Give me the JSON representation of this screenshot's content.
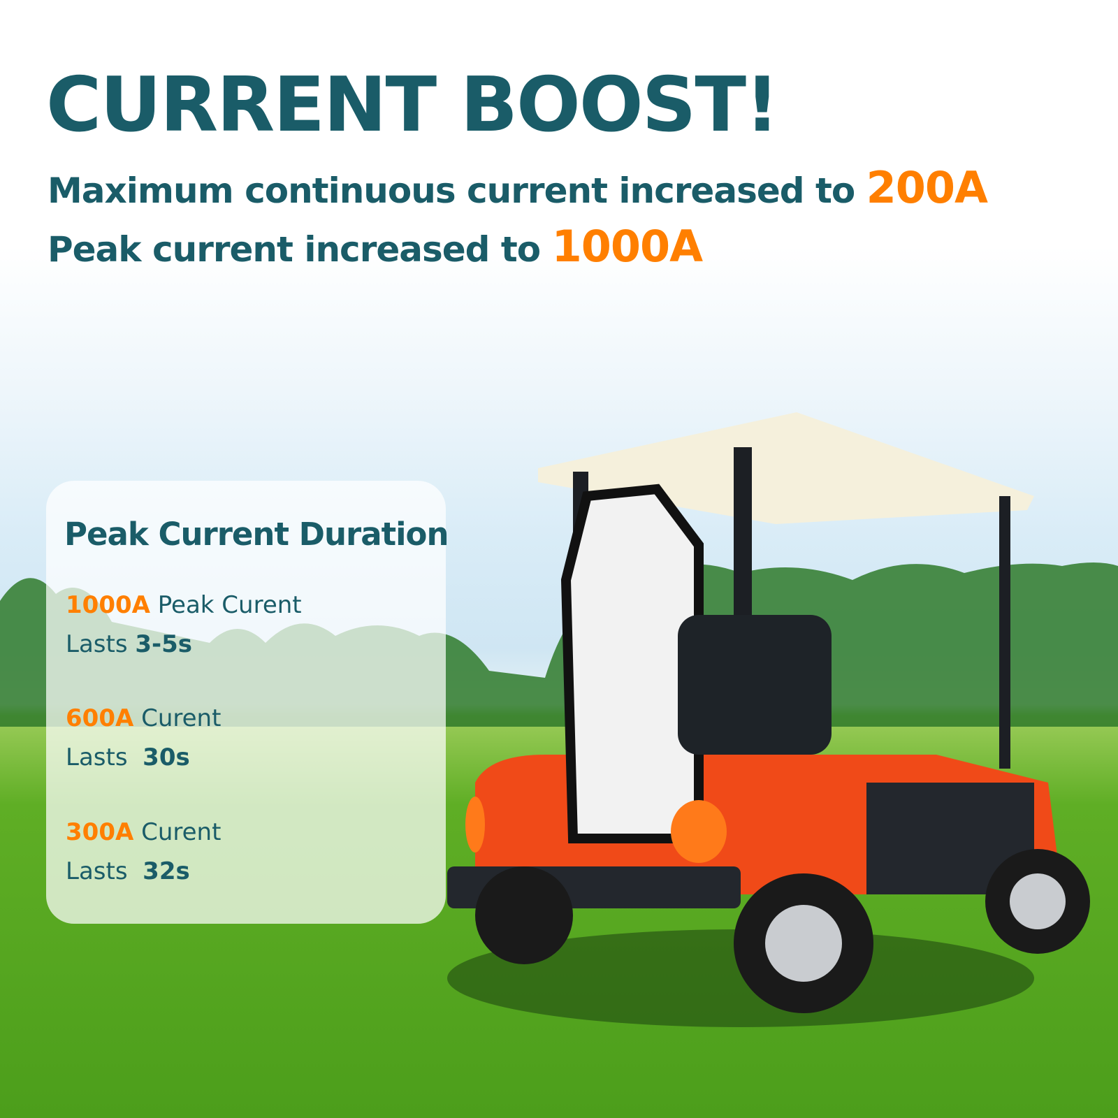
{
  "headline": "CURRENT BOOST!",
  "specs": [
    {
      "text": "Maximum continuous current increased to",
      "value": "200A"
    },
    {
      "text": "Peak current increased to",
      "value": "1000A"
    }
  ],
  "duration_card": {
    "title": "Peak Current Duration",
    "items": [
      {
        "amp": "1000A",
        "label": "Peak Curent",
        "lasts": "Lasts",
        "duration": "3-5s"
      },
      {
        "amp": "600A",
        "label": "Curent",
        "lasts": "Lasts",
        "duration": "30s"
      },
      {
        "amp": "300A",
        "label": "Curent",
        "lasts": "Lasts",
        "duration": "32s"
      }
    ]
  },
  "colors": {
    "primary": "#1a5c68",
    "accent": "#ff7f00",
    "cart_body": "#f04a18",
    "grass": "#4c9e1b"
  },
  "image": "golf-cart-on-golf-course-photo"
}
